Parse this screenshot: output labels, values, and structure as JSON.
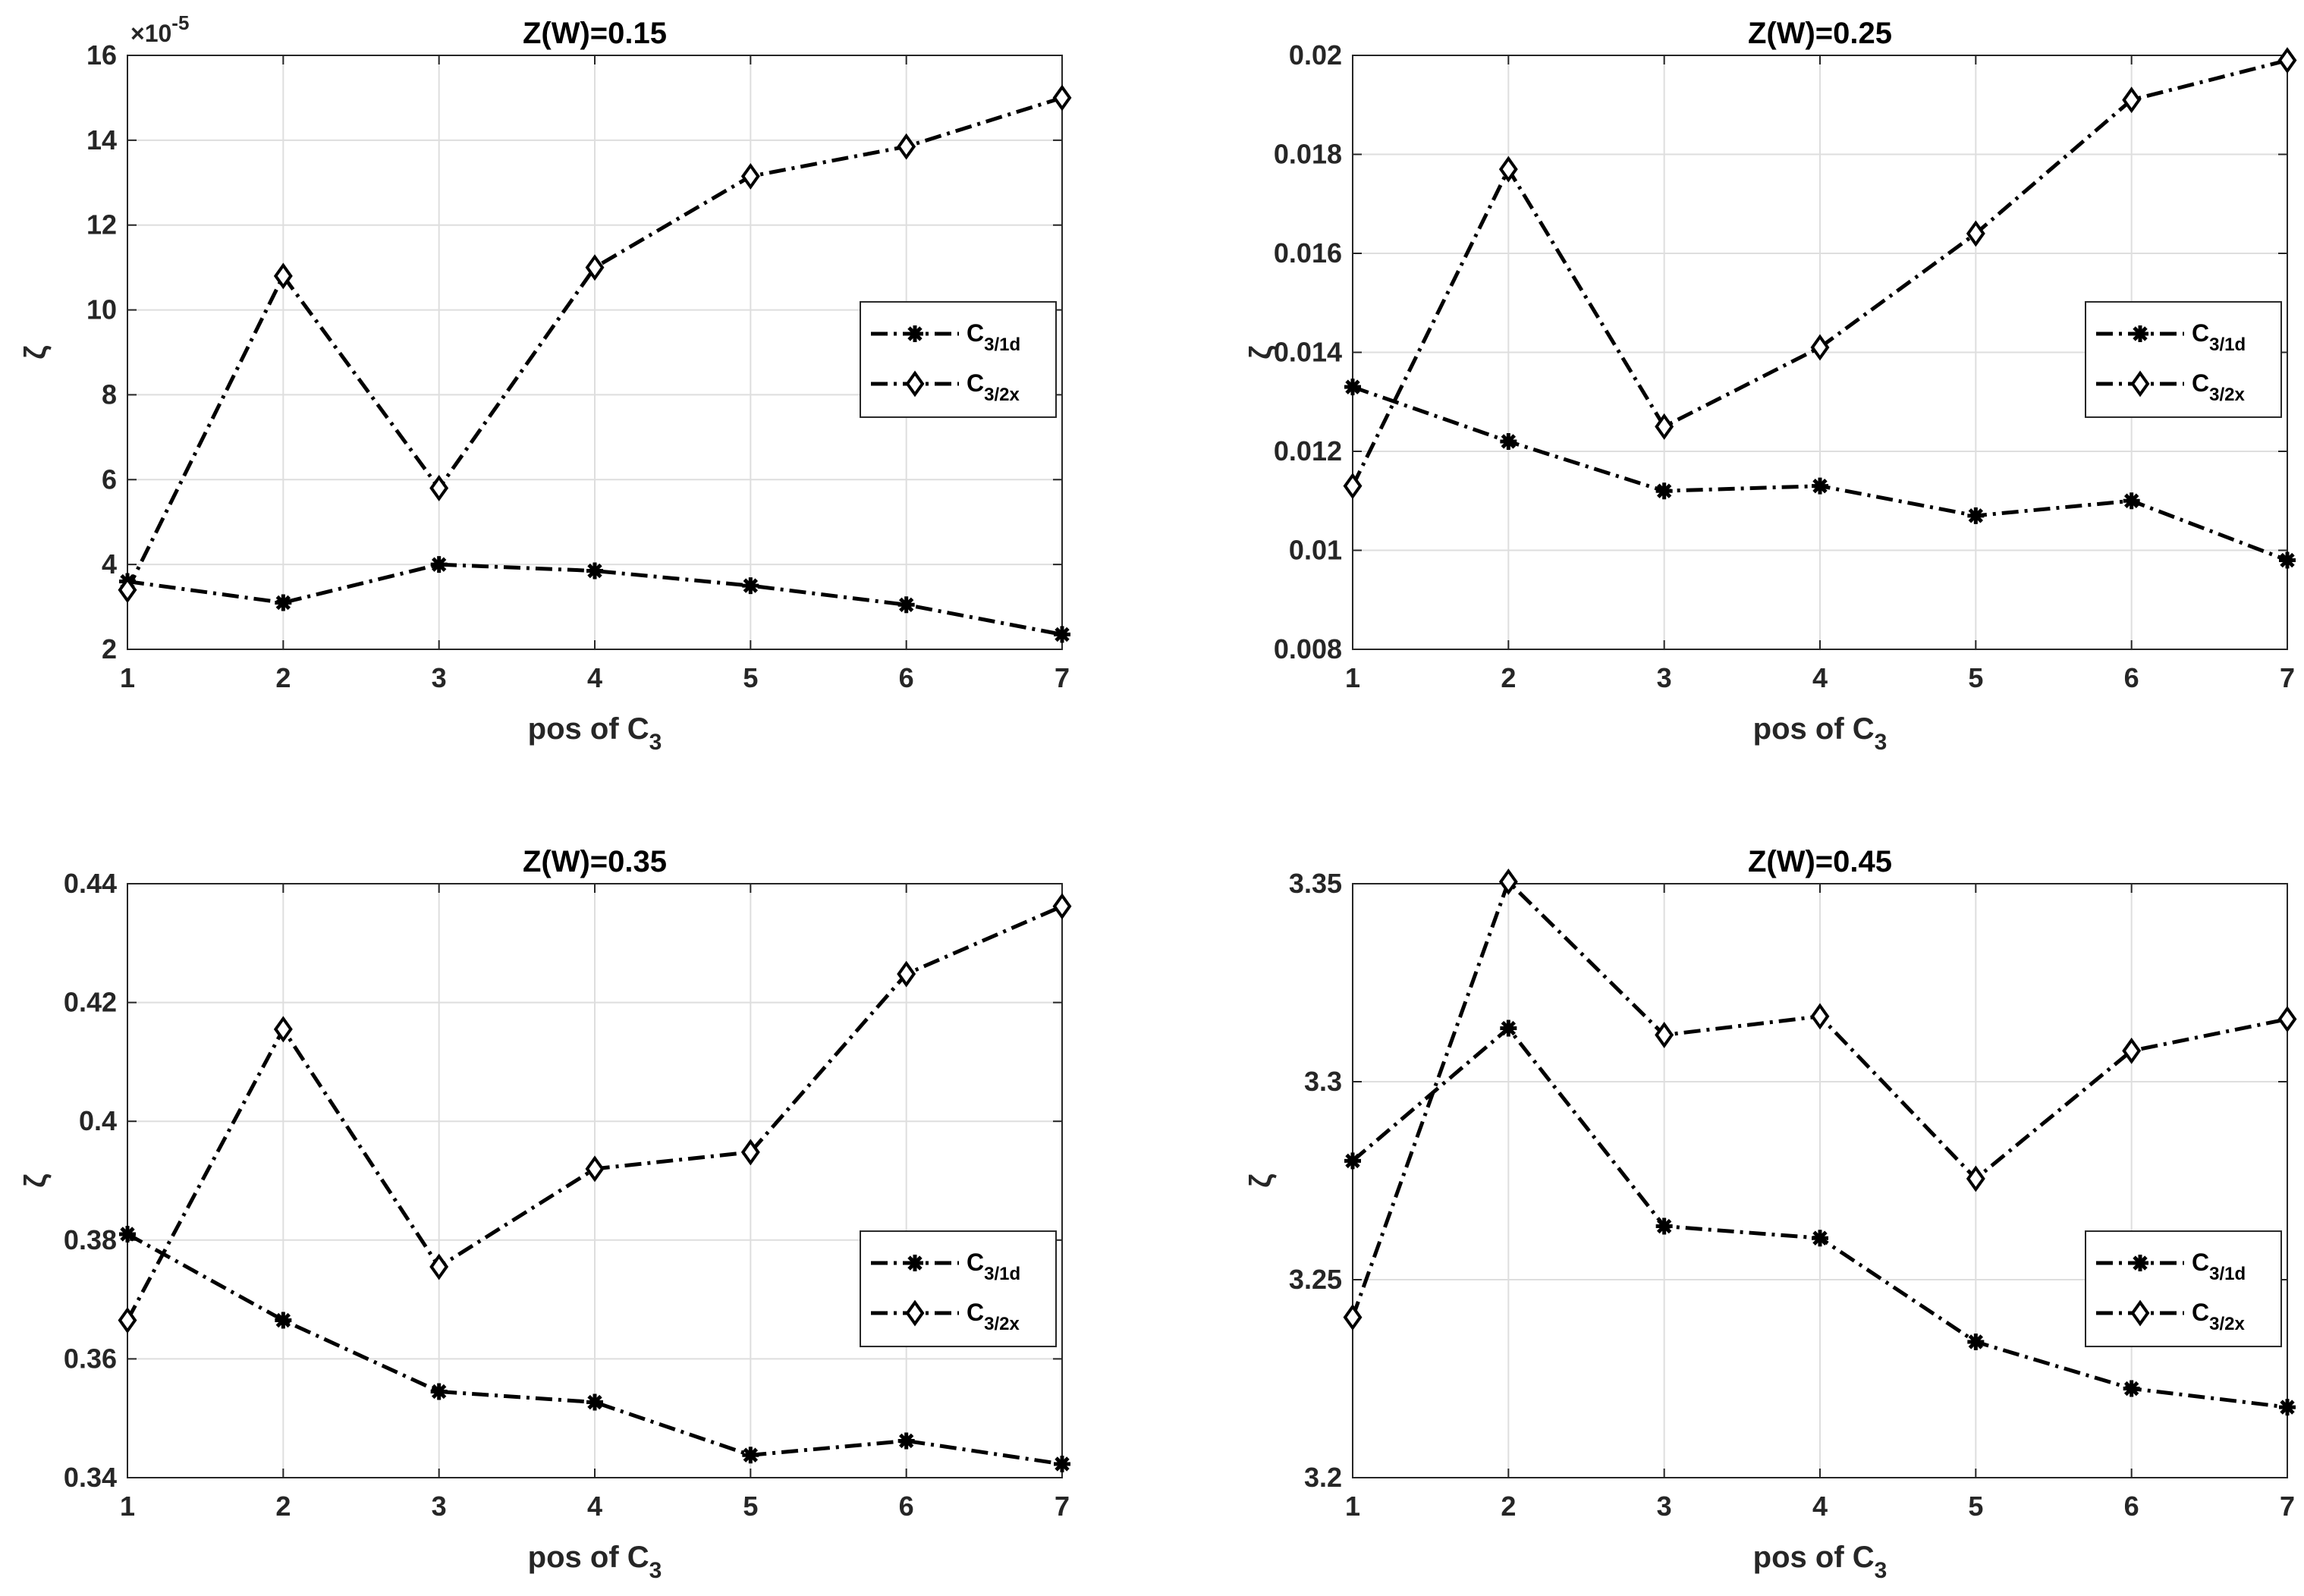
{
  "chart_data": [
    {
      "type": "line",
      "title": "Z(W)=0.15",
      "xlabel_main": "pos of C",
      "xlabel_sub": "3",
      "ylabel": "ζ",
      "x": [
        1,
        2,
        3,
        4,
        5,
        6,
        7
      ],
      "xlim": [
        1,
        7
      ],
      "ylim": [
        2,
        16
      ],
      "yticks": [
        2,
        4,
        6,
        8,
        10,
        12,
        14,
        16
      ],
      "ytick_labels": [
        "2",
        "4",
        "6",
        "8",
        "10",
        "12",
        "14",
        "16"
      ],
      "y_exponent_label": "×10",
      "y_exponent_power": "-5",
      "legend_position": "middle-right",
      "series": [
        {
          "name": "C",
          "name_sub": "3/1d",
          "marker": "star",
          "values": [
            3.6,
            3.1,
            4.0,
            3.85,
            3.5,
            3.05,
            2.35
          ]
        },
        {
          "name": "C",
          "name_sub": "3/2x",
          "marker": "diamond",
          "values": [
            3.4,
            10.8,
            5.8,
            11.0,
            13.15,
            13.85,
            15.0
          ]
        }
      ]
    },
    {
      "type": "line",
      "title": "Z(W)=0.25",
      "xlabel_main": "pos of C",
      "xlabel_sub": "3",
      "ylabel": "ζ",
      "x": [
        1,
        2,
        3,
        4,
        5,
        6,
        7
      ],
      "xlim": [
        1,
        7
      ],
      "ylim": [
        0.008,
        0.02
      ],
      "yticks": [
        0.008,
        0.01,
        0.012,
        0.014,
        0.016,
        0.018,
        0.02
      ],
      "ytick_labels": [
        "0.008",
        "0.01",
        "0.012",
        "0.014",
        "0.016",
        "0.018",
        "0.02"
      ],
      "legend_position": "middle-right",
      "series": [
        {
          "name": "C",
          "name_sub": "3/1d",
          "marker": "star",
          "values": [
            0.0133,
            0.0122,
            0.0112,
            0.0113,
            0.0107,
            0.011,
            0.0098
          ]
        },
        {
          "name": "C",
          "name_sub": "3/2x",
          "marker": "diamond",
          "values": [
            0.0113,
            0.0177,
            0.0125,
            0.0141,
            0.0164,
            0.0191,
            0.0199
          ]
        }
      ]
    },
    {
      "type": "line",
      "title": "Z(W)=0.35",
      "xlabel_main": "pos of C",
      "xlabel_sub": "3",
      "ylabel": "ζ",
      "x": [
        1,
        2,
        3,
        4,
        5,
        6,
        7
      ],
      "xlim": [
        1,
        7
      ],
      "ylim": [
        0.34,
        0.44
      ],
      "yticks": [
        0.34,
        0.36,
        0.38,
        0.4,
        0.42,
        0.44
      ],
      "ytick_labels": [
        "0.34",
        "0.36",
        "0.38",
        "0.4",
        "0.42",
        "0.44"
      ],
      "legend_position": "lower-right",
      "series": [
        {
          "name": "C",
          "name_sub": "3/1d",
          "marker": "star",
          "values": [
            0.381,
            0.3665,
            0.3545,
            0.3527,
            0.3438,
            0.3462,
            0.3423
          ]
        },
        {
          "name": "C",
          "name_sub": "3/2x",
          "marker": "diamond",
          "values": [
            0.3665,
            0.4155,
            0.3755,
            0.392,
            0.3948,
            0.4248,
            0.4362
          ]
        }
      ]
    },
    {
      "type": "line",
      "title": "Z(W)=0.45",
      "xlabel_main": "pos of C",
      "xlabel_sub": "3",
      "ylabel": "ζ",
      "x": [
        1,
        2,
        3,
        4,
        5,
        6,
        7
      ],
      "xlim": [
        1,
        7
      ],
      "ylim": [
        3.2,
        3.35
      ],
      "yticks": [
        3.2,
        3.25,
        3.3,
        3.35
      ],
      "ytick_labels": [
        "3.2",
        "3.25",
        "3.3",
        "3.35"
      ],
      "legend_position": "lower-right",
      "series": [
        {
          "name": "C",
          "name_sub": "3/1d",
          "marker": "star",
          "values": [
            3.28,
            3.3135,
            3.2635,
            3.2605,
            3.2343,
            3.2225,
            3.2178
          ]
        },
        {
          "name": "C",
          "name_sub": "3/2x",
          "marker": "diamond",
          "values": [
            3.2405,
            3.3505,
            3.3118,
            3.3165,
            3.2755,
            3.3078,
            3.3158
          ]
        }
      ]
    }
  ]
}
